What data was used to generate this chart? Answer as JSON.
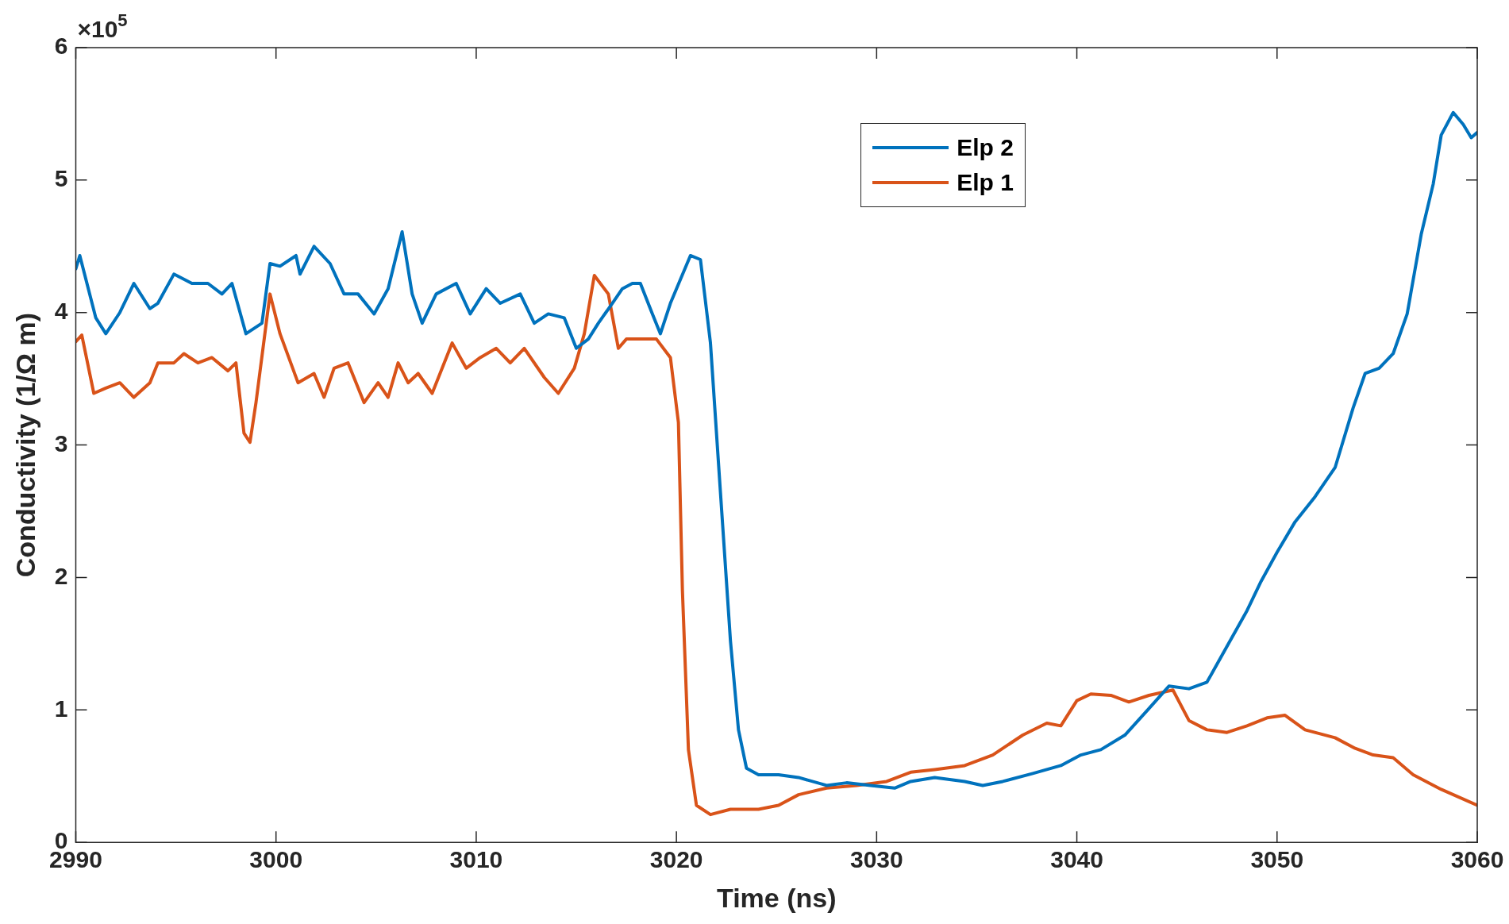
{
  "chart_data": {
    "type": "line",
    "xlabel": "Time (ns)",
    "ylabel": "Conductivity (1/Ω m)",
    "annotations": [
      "×10$^{5}$"
    ],
    "xlim": [
      2990,
      3060
    ],
    "xticks": [
      2990,
      3000,
      3010,
      3020,
      3030,
      3040,
      3050,
      3060
    ],
    "ylim": [
      0,
      6
    ],
    "yticks": [
      0,
      1,
      2,
      3,
      4,
      5,
      6
    ],
    "grid": false,
    "legend": "top right",
    "marker": "none",
    "line_style": "solid",
    "series": [
      {
        "name": "Elp 2",
        "color": "#0072bd",
        "x": [
          2990.0,
          2990.2,
          2991.0,
          2991.5,
          2992.2,
          2992.9,
          2993.7,
          2994.1,
          2994.9,
          2995.8,
          2996.6,
          2997.3,
          2997.8,
          2998.5,
          2999.3,
          2999.7,
          3000.2,
          3001.0,
          3001.2,
          3001.9,
          3002.7,
          3003.4,
          3004.1,
          3004.9,
          3005.6,
          3006.3,
          3006.8,
          3007.3,
          3008.0,
          3009.0,
          3009.7,
          3010.5,
          3011.2,
          3012.2,
          3012.9,
          3013.6,
          3014.4,
          3015.0,
          3015.6,
          3016.1,
          3016.8,
          3017.3,
          3017.8,
          3018.2,
          3018.8,
          3019.2,
          3019.7,
          3020.2,
          3020.7,
          3021.2,
          3021.7,
          3022.2,
          3022.7,
          3023.1,
          3023.5,
          3024.1,
          3025.1,
          3026.1,
          3027.5,
          3028.5,
          3029.7,
          3030.9,
          3031.7,
          3032.9,
          3034.4,
          3035.3,
          3036.3,
          3037.8,
          3039.2,
          3040.2,
          3041.2,
          3042.4,
          3043.6,
          3044.6,
          3045.6,
          3046.5,
          3047.5,
          3048.5,
          3049.2,
          3050.0,
          3050.9,
          3051.9,
          3052.9,
          3053.8,
          3054.4,
          3055.1,
          3055.8,
          3056.5,
          3057.2,
          3057.8,
          3058.2,
          3058.8,
          3059.3,
          3059.7,
          3060.0
        ],
        "values": [
          4.33,
          4.43,
          3.96,
          3.84,
          4.0,
          4.22,
          4.03,
          4.07,
          4.29,
          4.22,
          4.22,
          4.14,
          4.22,
          3.84,
          3.92,
          4.37,
          4.35,
          4.43,
          4.29,
          4.5,
          4.37,
          4.14,
          4.14,
          3.99,
          4.18,
          4.61,
          4.14,
          3.92,
          4.14,
          4.22,
          3.99,
          4.18,
          4.07,
          4.14,
          3.92,
          3.99,
          3.96,
          3.73,
          3.8,
          3.92,
          4.07,
          4.18,
          4.22,
          4.22,
          3.99,
          3.84,
          4.07,
          4.25,
          4.43,
          4.4,
          3.77,
          2.64,
          1.52,
          0.85,
          0.56,
          0.51,
          0.51,
          0.49,
          0.43,
          0.45,
          0.43,
          0.41,
          0.46,
          0.49,
          0.46,
          0.43,
          0.46,
          0.52,
          0.58,
          0.66,
          0.7,
          0.81,
          1.01,
          1.18,
          1.16,
          1.21,
          1.48,
          1.75,
          1.97,
          2.19,
          2.42,
          2.61,
          2.83,
          3.28,
          3.54,
          3.58,
          3.69,
          3.99,
          4.59,
          4.97,
          5.34,
          5.51,
          5.42,
          5.32,
          5.36
        ]
      },
      {
        "name": "Elp 1",
        "color": "#d95319",
        "x": [
          2990.0,
          2990.3,
          2990.9,
          2991.5,
          2992.2,
          2992.9,
          2993.7,
          2994.1,
          2994.9,
          2995.4,
          2996.1,
          2996.8,
          2997.6,
          2998.0,
          2998.4,
          2998.7,
          2999.0,
          2999.7,
          3000.2,
          3001.1,
          3001.9,
          3002.4,
          3002.9,
          3003.6,
          3004.4,
          3005.1,
          3005.6,
          3006.1,
          3006.6,
          3007.1,
          3007.8,
          3008.8,
          3009.5,
          3010.2,
          3011.0,
          3011.7,
          3012.4,
          3013.4,
          3014.1,
          3014.9,
          3015.4,
          3015.9,
          3016.6,
          3017.1,
          3017.5,
          3018.3,
          3019.0,
          3019.7,
          3020.1,
          3020.3,
          3020.6,
          3021.0,
          3021.7,
          3022.7,
          3024.1,
          3025.1,
          3026.1,
          3027.5,
          3029.0,
          3030.5,
          3031.7,
          3032.9,
          3034.4,
          3035.8,
          3037.3,
          3038.5,
          3039.2,
          3040.0,
          3040.7,
          3041.7,
          3042.6,
          3043.6,
          3044.8,
          3045.6,
          3046.5,
          3047.5,
          3048.5,
          3049.5,
          3050.4,
          3051.4,
          3052.9,
          3053.9,
          3054.8,
          3055.8,
          3056.8,
          3058.2,
          3060.0
        ],
        "values": [
          3.78,
          3.83,
          3.39,
          3.43,
          3.47,
          3.36,
          3.47,
          3.62,
          3.62,
          3.69,
          3.62,
          3.66,
          3.56,
          3.62,
          3.09,
          3.02,
          3.32,
          4.14,
          3.84,
          3.47,
          3.54,
          3.36,
          3.58,
          3.62,
          3.32,
          3.47,
          3.36,
          3.62,
          3.47,
          3.54,
          3.39,
          3.77,
          3.58,
          3.66,
          3.73,
          3.62,
          3.73,
          3.51,
          3.39,
          3.58,
          3.84,
          4.28,
          4.14,
          3.73,
          3.8,
          3.8,
          3.8,
          3.66,
          3.17,
          1.9,
          0.7,
          0.28,
          0.21,
          0.25,
          0.25,
          0.28,
          0.36,
          0.41,
          0.43,
          0.46,
          0.53,
          0.55,
          0.58,
          0.66,
          0.81,
          0.9,
          0.88,
          1.07,
          1.12,
          1.11,
          1.06,
          1.11,
          1.15,
          0.92,
          0.85,
          0.83,
          0.88,
          0.94,
          0.96,
          0.85,
          0.79,
          0.71,
          0.66,
          0.64,
          0.51,
          0.4,
          0.28
        ]
      }
    ]
  }
}
